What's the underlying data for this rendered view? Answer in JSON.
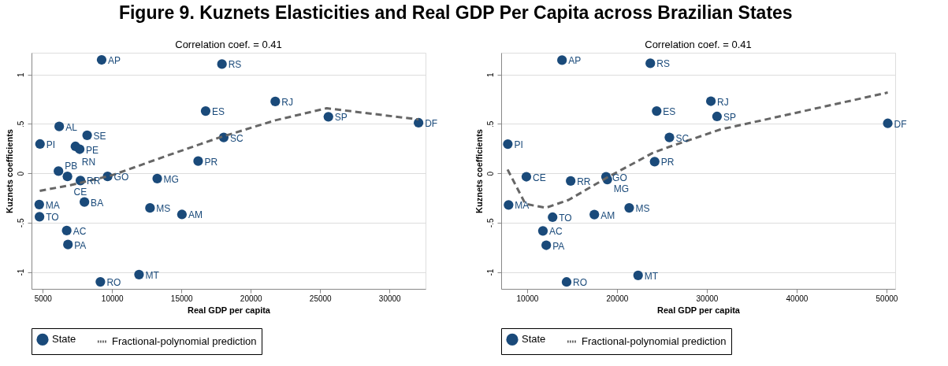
{
  "chart_data": [
    {
      "type": "scatter",
      "title": "Figure 9. Kuznets Elasticities and Real GDP Per Capita across Brazilian States",
      "xlabel": "Real GDP per capita",
      "ylabel": "Kuznets coefficients",
      "xlim": [
        4190,
        32600
      ],
      "ylim": [
        -1.17,
        1.22
      ],
      "xticks": [
        5000,
        10000,
        15000,
        20000,
        25000,
        30000
      ],
      "yticks": [
        {
          "value": -1,
          "label": "-1"
        },
        {
          "value": -0.5,
          "label": "-.5"
        },
        {
          "value": 0,
          "label": "0"
        },
        {
          "value": 0.5,
          "label": ".5"
        },
        {
          "value": 1,
          "label": "1"
        }
      ],
      "grid": "y",
      "legend": "bottom",
      "series": [
        {
          "name": "State",
          "marker": "circle",
          "color": "#1a4a7a",
          "x": [
            9245,
            6187,
            8201,
            4802,
            7356,
            7662,
            6133,
            6781,
            7717,
            9676,
            13255,
            16205,
            16745,
            8004,
            4748,
            4766,
            12734,
            15036,
            6727,
            6817,
            11942,
            9155,
            17920,
            21766,
            25596,
            32097,
            18050
          ],
          "values": [
            1.148,
            0.474,
            0.385,
            0.296,
            0.272,
            0.244,
            0.022,
            -0.032,
            -0.074,
            -0.032,
            -0.054,
            0.123,
            0.63,
            -0.291,
            -0.316,
            -0.44,
            -0.351,
            -0.417,
            -0.58,
            -0.721,
            -1.025,
            -1.099,
            1.105,
            0.727,
            0.572,
            0.511,
            0.363
          ]
        },
        {
          "name": "Fractional-polynomial prediction",
          "type": "line",
          "line_style": "dashed",
          "color": "#666666",
          "x": [
            4784,
            7000,
            10000,
            14000,
            17700,
            21766,
            25470,
            32097
          ],
          "values": [
            -0.178,
            -0.12,
            -0.02,
            0.18,
            0.36,
            0.536,
            0.658,
            0.545
          ]
        }
      ],
      "annotations": [
        "Correlation coef. = 0.41",
        {
          "text": "AP",
          "x": 9245,
          "y": 1.148
        },
        {
          "text": "AL",
          "x": 6187,
          "y": 0.474
        },
        {
          "text": "SE",
          "x": 8201,
          "y": 0.385
        },
        {
          "text": "PI",
          "x": 4802,
          "y": 0.296
        },
        {
          "text": "RN",
          "x": 7356,
          "y": 0.272
        },
        {
          "text": "PE",
          "x": 7662,
          "y": 0.244
        },
        {
          "text": "PB",
          "x": 6133,
          "y": 0.022
        },
        {
          "text": "CE",
          "x": 6781,
          "y": -0.032
        },
        {
          "text": "RR",
          "x": 7717,
          "y": -0.074
        },
        {
          "text": "GO",
          "x": 9676,
          "y": -0.032
        },
        {
          "text": "MG",
          "x": 13255,
          "y": -0.054
        },
        {
          "text": "PR",
          "x": 16205,
          "y": 0.123
        },
        {
          "text": "ES",
          "x": 16745,
          "y": 0.63
        },
        {
          "text": "BA",
          "x": 8004,
          "y": -0.291
        },
        {
          "text": "MA",
          "x": 4748,
          "y": -0.316
        },
        {
          "text": "TO",
          "x": 4766,
          "y": -0.44
        },
        {
          "text": "MS",
          "x": 12734,
          "y": -0.351
        },
        {
          "text": "AM",
          "x": 15036,
          "y": -0.417
        },
        {
          "text": "AC",
          "x": 6727,
          "y": -0.58
        },
        {
          "text": "PA",
          "x": 6817,
          "y": -0.721
        },
        {
          "text": "MT",
          "x": 11942,
          "y": -1.025
        },
        {
          "text": "RO",
          "x": 9155,
          "y": -1.099
        },
        {
          "text": "RS",
          "x": 17920,
          "y": 1.105
        },
        {
          "text": "RJ",
          "x": 21766,
          "y": 0.727
        },
        {
          "text": "SP",
          "x": 25596,
          "y": 0.572
        },
        {
          "text": "DF",
          "x": 32097,
          "y": 0.511
        },
        {
          "text": "SC",
          "x": 18050,
          "y": 0.363
        }
      ]
    },
    {
      "type": "scatter",
      "xlabel": "Real GDP per capita",
      "ylabel": "Kuznets coefficients",
      "xlim": [
        7110,
        50970
      ],
      "ylim": [
        -1.17,
        1.22
      ],
      "xticks": [
        10000,
        20000,
        30000,
        40000,
        50000
      ],
      "yticks": [
        {
          "value": -1,
          "label": "-1"
        },
        {
          "value": -0.5,
          "label": "-.5"
        },
        {
          "value": 0,
          "label": "0"
        },
        {
          "value": 0.5,
          "label": ".5"
        },
        {
          "value": 1,
          "label": "1"
        }
      ],
      "grid": "y",
      "legend": "bottom",
      "series": [
        {
          "name": "State",
          "marker": "circle",
          "color": "#1a4a7a",
          "x": [
            13881,
            23711,
            24419,
            7847,
            25836,
            24193,
            9915,
            14844,
            18782,
            18924,
            7932,
            12833,
            17479,
            21360,
            11756,
            12125,
            22351,
            14391,
            30454,
            31135,
            50142
          ],
          "values": [
            1.145,
            1.113,
            0.63,
            0.295,
            0.363,
            0.118,
            -0.035,
            -0.078,
            -0.035,
            -0.063,
            -0.32,
            -0.445,
            -0.418,
            -0.35,
            -0.583,
            -0.728,
            -1.033,
            -1.1,
            0.73,
            0.575,
            0.505
          ]
        },
        {
          "name": "Fractional-polynomial prediction",
          "type": "line",
          "line_style": "dashed",
          "color": "#666666",
          "x": [
            7819,
            9802,
            12068,
            14618,
            18867,
            23966,
            25830,
            28667,
            31504,
            50142
          ],
          "values": [
            0.038,
            -0.31,
            -0.35,
            -0.27,
            -0.045,
            0.205,
            0.268,
            0.355,
            0.443,
            0.817
          ]
        }
      ],
      "annotations": [
        "Correlation coef. = 0.41",
        {
          "text": "AP",
          "x": 13881,
          "y": 1.145
        },
        {
          "text": "RS",
          "x": 23711,
          "y": 1.113
        },
        {
          "text": "ES",
          "x": 24419,
          "y": 0.63
        },
        {
          "text": "PI",
          "x": 7847,
          "y": 0.295
        },
        {
          "text": "SC",
          "x": 25836,
          "y": 0.363
        },
        {
          "text": "PR",
          "x": 24193,
          "y": 0.118
        },
        {
          "text": "CE",
          "x": 9915,
          "y": -0.035
        },
        {
          "text": "RR",
          "x": 14844,
          "y": -0.078
        },
        {
          "text": "GO",
          "x": 18782,
          "y": -0.035
        },
        {
          "text": "MG",
          "x": 18924,
          "y": -0.063
        },
        {
          "text": "MA",
          "x": 7932,
          "y": -0.32
        },
        {
          "text": "TO",
          "x": 12833,
          "y": -0.445
        },
        {
          "text": "AM",
          "x": 17479,
          "y": -0.418
        },
        {
          "text": "MS",
          "x": 21360,
          "y": -0.35
        },
        {
          "text": "AC",
          "x": 11756,
          "y": -0.583
        },
        {
          "text": "PA",
          "x": 12125,
          "y": -0.728
        },
        {
          "text": "MT",
          "x": 22351,
          "y": -1.033
        },
        {
          "text": "RO",
          "x": 14391,
          "y": -1.1
        },
        {
          "text": "RJ",
          "x": 30454,
          "y": 0.73
        },
        {
          "text": "SP",
          "x": 31135,
          "y": 0.575
        },
        {
          "text": "DF",
          "x": 50142,
          "y": 0.505
        }
      ]
    }
  ]
}
